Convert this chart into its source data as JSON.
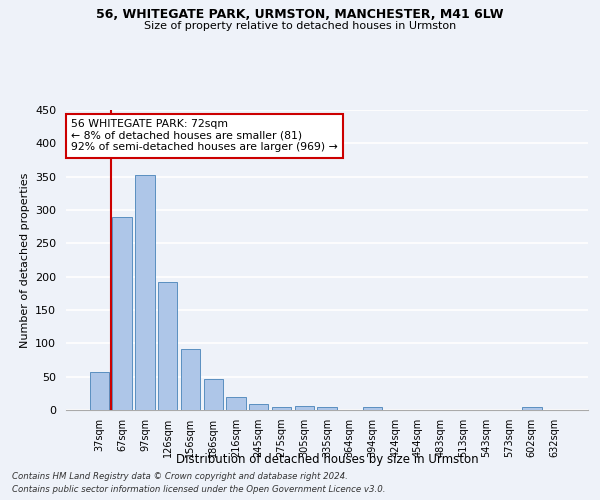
{
  "title1": "56, WHITEGATE PARK, URMSTON, MANCHESTER, M41 6LW",
  "title2": "Size of property relative to detached houses in Urmston",
  "xlabel": "Distribution of detached houses by size in Urmston",
  "ylabel": "Number of detached properties",
  "categories": [
    "37sqm",
    "67sqm",
    "97sqm",
    "126sqm",
    "156sqm",
    "186sqm",
    "216sqm",
    "245sqm",
    "275sqm",
    "305sqm",
    "335sqm",
    "364sqm",
    "394sqm",
    "424sqm",
    "454sqm",
    "483sqm",
    "513sqm",
    "543sqm",
    "573sqm",
    "602sqm",
    "632sqm"
  ],
  "values": [
    57,
    290,
    353,
    192,
    91,
    47,
    20,
    9,
    5,
    6,
    5,
    0,
    5,
    0,
    0,
    0,
    0,
    0,
    0,
    5,
    0
  ],
  "bar_color": "#aec6e8",
  "bar_edge_color": "#5a8fc0",
  "marker_bin_index": 1,
  "annotation_title": "56 WHITEGATE PARK: 72sqm",
  "annotation_line1": "← 8% of detached houses are smaller (81)",
  "annotation_line2": "92% of semi-detached houses are larger (969) →",
  "footer1": "Contains HM Land Registry data © Crown copyright and database right 2024.",
  "footer2": "Contains public sector information licensed under the Open Government Licence v3.0.",
  "ylim": [
    0,
    450
  ],
  "yticks": [
    0,
    50,
    100,
    150,
    200,
    250,
    300,
    350,
    400,
    450
  ],
  "background_color": "#eef2f9",
  "grid_color": "#ffffff",
  "annotation_box_color": "#ffffff",
  "annotation_box_edge": "#cc0000",
  "red_line_color": "#cc0000"
}
